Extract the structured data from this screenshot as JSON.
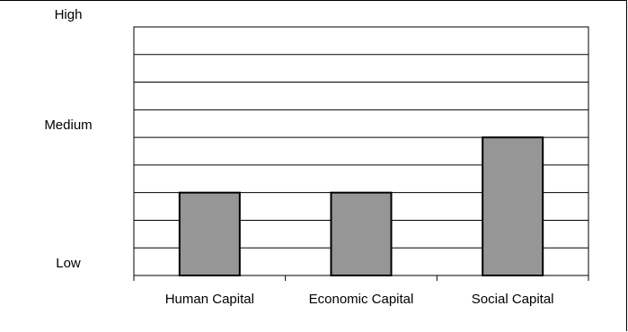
{
  "chart_data": {
    "type": "bar",
    "categories": [
      "Human Capital",
      "Economic Capital",
      "Social Capital"
    ],
    "values": [
      3,
      3,
      5
    ],
    "ylim": [
      0,
      9
    ],
    "y_tick_labels": [
      {
        "label": "Low",
        "value": 0
      },
      {
        "label": "Medium",
        "value": 5
      },
      {
        "label": "High",
        "value": 9
      }
    ],
    "gridlines": true,
    "bar_color": "#969696",
    "legend": "none",
    "title": "",
    "xlabel": "",
    "ylabel": ""
  }
}
